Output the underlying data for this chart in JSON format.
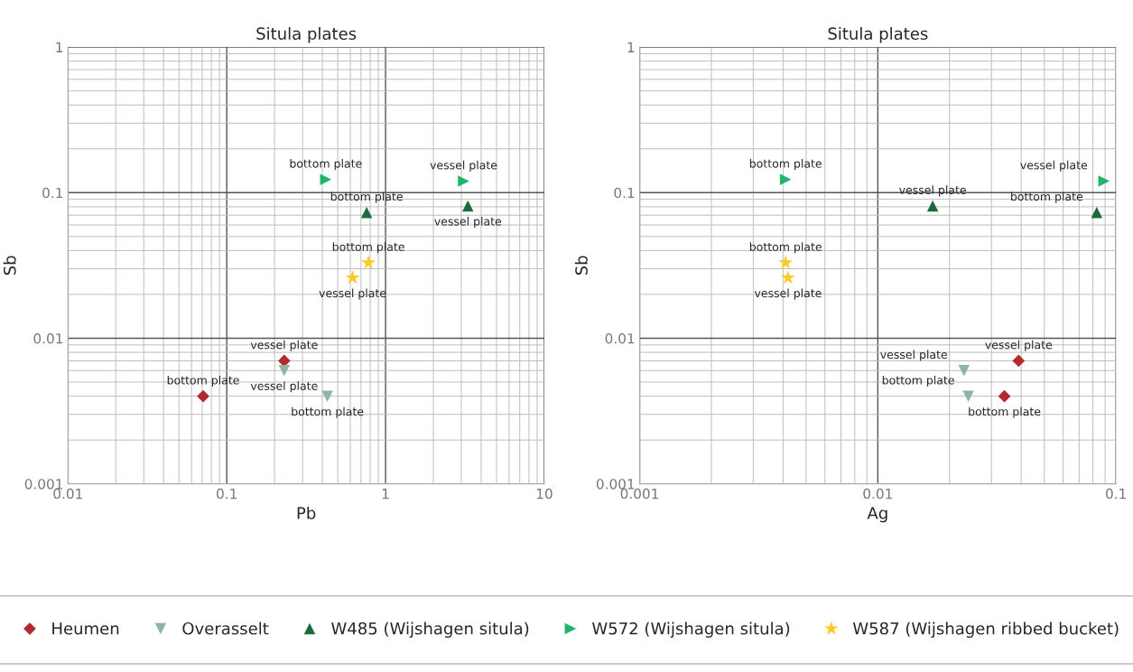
{
  "chart_data": [
    {
      "type": "scatter",
      "title": "Situla plates",
      "xlabel": "Pb",
      "ylabel": "Sb",
      "log": "xy",
      "grid": true,
      "legend": "bottom",
      "xlim": [
        0.01,
        10
      ],
      "xticks": [
        0.01,
        0.1,
        1,
        10
      ],
      "ylim": [
        0.001,
        1
      ],
      "yticks": [
        0.001,
        0.01,
        0.1,
        1
      ],
      "series": [
        {
          "name": "Heumen",
          "color": "#b22a2e",
          "marker": "diamond",
          "x": [
            0.071,
            0.23
          ],
          "values": [
            0.004,
            0.007
          ]
        },
        {
          "name": "Overasselt",
          "color": "#8fb5a0",
          "marker": "triangle-down",
          "x": [
            0.23,
            0.43
          ],
          "values": [
            0.006,
            0.004
          ]
        },
        {
          "name": "W485 (Wijshagen situla)",
          "color": "#1a6b3c",
          "marker": "triangle",
          "x": [
            0.76,
            3.3
          ],
          "values": [
            0.073,
            0.081
          ]
        },
        {
          "name": "W572 (Wijshagen situla)",
          "color": "#1fb36b",
          "marker": "triangle-right",
          "x": [
            0.42,
            3.1
          ],
          "values": [
            0.123,
            0.12
          ]
        },
        {
          "name": "W587 (Wijshagen ribbed bucket)",
          "color": "#fdc92a",
          "marker": "star",
          "x": [
            0.78,
            0.62
          ],
          "values": [
            0.033,
            0.026
          ]
        }
      ],
      "annotations": [
        {
          "text": "bottom plate",
          "x": 0.071,
          "y": 0.004
        },
        {
          "text": "vessel plate",
          "x": 0.23,
          "y": 0.007
        },
        {
          "text": "vessel plate",
          "x": 0.23,
          "y": 0.006
        },
        {
          "text": "bottom plate",
          "x": 0.43,
          "y": 0.004
        },
        {
          "text": "bottom plate",
          "x": 0.76,
          "y": 0.073
        },
        {
          "text": "vessel plate",
          "x": 3.3,
          "y": 0.081
        },
        {
          "text": "bottom plate",
          "x": 0.42,
          "y": 0.123
        },
        {
          "text": "vessel plate",
          "x": 3.1,
          "y": 0.12
        },
        {
          "text": "bottom plate",
          "x": 0.78,
          "y": 0.033
        },
        {
          "text": "vessel plate",
          "x": 0.62,
          "y": 0.026
        }
      ]
    },
    {
      "type": "scatter",
      "title": "Situla plates",
      "xlabel": "Ag",
      "ylabel": "Sb",
      "log": "xy",
      "grid": true,
      "xlim": [
        0.001,
        0.1
      ],
      "xticks": [
        0.001,
        0.01,
        0.1
      ],
      "ylim": [
        0.001,
        1
      ],
      "yticks": [
        0.001,
        0.01,
        0.1,
        1
      ],
      "series": [
        {
          "color": "#b22a2e",
          "marker": "diamond",
          "x": [
            0.034,
            0.039
          ],
          "values": [
            0.004,
            0.007
          ]
        },
        {
          "color": "#8fb5a0",
          "marker": "triangle-down",
          "x": [
            0.023,
            0.024
          ],
          "values": [
            0.006,
            0.004
          ]
        },
        {
          "color": "#1a6b3c",
          "marker": "triangle",
          "x": [
            0.083,
            0.017
          ],
          "values": [
            0.073,
            0.081
          ]
        },
        {
          "color": "#1fb36b",
          "marker": "triangle-right",
          "x": [
            0.0041,
            0.089
          ],
          "values": [
            0.123,
            0.12
          ]
        },
        {
          "color": "#fdc92a",
          "marker": "star",
          "x": [
            0.0041,
            0.0042
          ],
          "values": [
            0.033,
            0.026
          ]
        }
      ],
      "annotations": [
        {
          "text": "bottom plate",
          "x": 0.034,
          "y": 0.004
        },
        {
          "text": "vessel plate",
          "x": 0.039,
          "y": 0.007
        },
        {
          "text": "vessel plate",
          "x": 0.023,
          "y": 0.006
        },
        {
          "text": "bottom plate",
          "x": 0.024,
          "y": 0.004
        },
        {
          "text": "bottom plate",
          "x": 0.083,
          "y": 0.073
        },
        {
          "text": "vessel plate",
          "x": 0.017,
          "y": 0.081
        },
        {
          "text": "bottom plate",
          "x": 0.0041,
          "y": 0.123
        },
        {
          "text": "vessel plate",
          "x": 0.089,
          "y": 0.12
        },
        {
          "text": "bottom plate",
          "x": 0.0041,
          "y": 0.033
        },
        {
          "text": "vessel plate",
          "x": 0.0042,
          "y": 0.026
        }
      ]
    }
  ]
}
